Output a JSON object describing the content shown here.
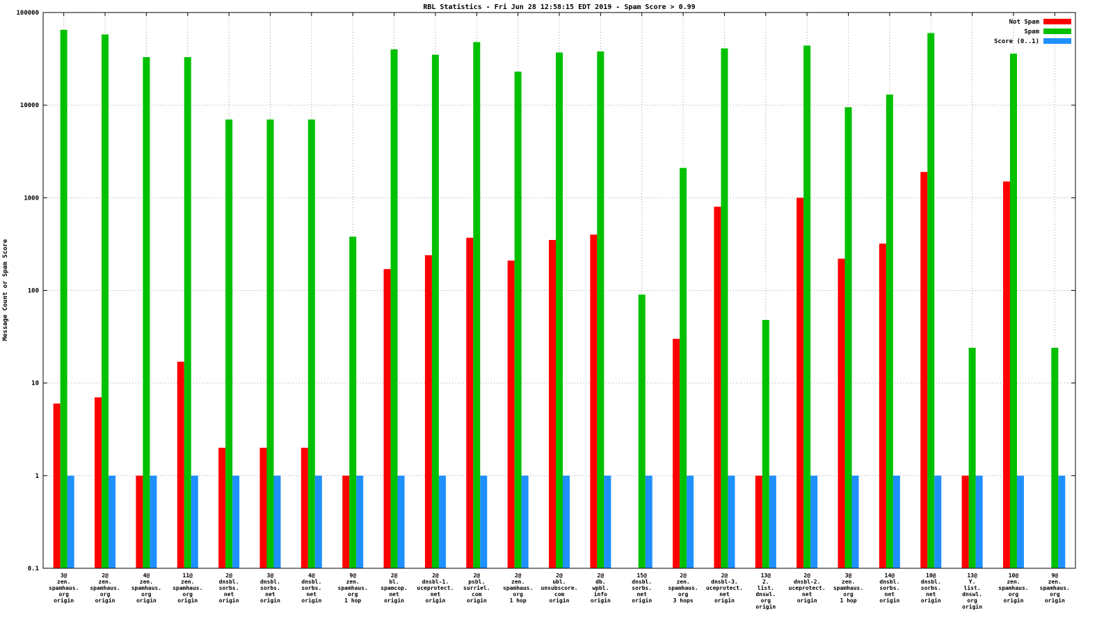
{
  "chart_data": {
    "type": "bar",
    "title": "RBL Statistics - Fri Jun 28 12:58:15 EDT 2019 - Spam Score > 0.99",
    "xlabel": "",
    "ylabel": "Message Count or Spam Score",
    "yscale": "log",
    "ylim": [
      0.1,
      100000
    ],
    "yticks": [
      100000,
      10000,
      1000,
      100,
      10,
      1,
      0.1
    ],
    "ytick_labels": [
      "100000",
      "10000",
      "1000",
      "100",
      "10",
      "1",
      "0.1"
    ],
    "grid": true,
    "legend_position": "top-right",
    "categories": [
      [
        "3@",
        "zen.",
        "spamhaus.",
        "org",
        "origin"
      ],
      [
        "2@",
        "zen.",
        "spamhaus.",
        "org",
        "origin"
      ],
      [
        "4@",
        "zen.",
        "spamhaus.",
        "org",
        "origin"
      ],
      [
        "11@",
        "zen.",
        "spamhaus.",
        "org",
        "origin"
      ],
      [
        "2@",
        "dnsbl.",
        "sorbs.",
        "net",
        "origin"
      ],
      [
        "3@",
        "dnsbl.",
        "sorbs.",
        "net",
        "origin"
      ],
      [
        "4@",
        "dnsbl.",
        "sorbs.",
        "net",
        "origin"
      ],
      [
        "9@",
        "zen.",
        "spamhaus.",
        "org",
        "1 hop"
      ],
      [
        "2@",
        "bl.",
        "spamcop.",
        "net",
        "origin"
      ],
      [
        "2@",
        "dnsbl-1.",
        "uceprotect.",
        "net",
        "origin"
      ],
      [
        "2@",
        "psbl.",
        "surriel.",
        "com",
        "origin"
      ],
      [
        "2@",
        "zen.",
        "spamhaus.",
        "org",
        "1 hop"
      ],
      [
        "2@",
        "ubl.",
        "unsubscore.",
        "com",
        "origin"
      ],
      [
        "2@",
        "db.",
        "wpbl.",
        "info",
        "origin"
      ],
      [
        "15@",
        "dnsbl.",
        "sorbs.",
        "net",
        "origin"
      ],
      [
        "2@",
        "zen.",
        "spamhaus.",
        "org",
        "3 hops"
      ],
      [
        "2@",
        "dnsbl-3.",
        "uceprotect.",
        "net",
        "origin"
      ],
      [
        "13@",
        "2.",
        "list.",
        "dnswl.",
        "org",
        "origin"
      ],
      [
        "2@",
        "dnsbl-2.",
        "uceprotect.",
        "net",
        "origin"
      ],
      [
        "3@",
        "zen.",
        "spamhaus.",
        "org",
        "1 hop"
      ],
      [
        "14@",
        "dnsbl.",
        "sorbs.",
        "net",
        "origin"
      ],
      [
        "10@",
        "dnsbl.",
        "sorbs.",
        "net",
        "origin"
      ],
      [
        "13@",
        "Y.",
        "list.",
        "dnswl.",
        "org",
        "origin"
      ],
      [
        "10@",
        "zen.",
        "spamhaus.",
        "org",
        "origin"
      ],
      [
        "9@",
        "zen.",
        "spamhaus.",
        "org",
        "origin"
      ]
    ],
    "series": [
      {
        "name": "Not Spam",
        "color": "#ff0000",
        "values": [
          6,
          7,
          1,
          17,
          2,
          2,
          2,
          1,
          170,
          240,
          370,
          210,
          350,
          400,
          null,
          30,
          800,
          1,
          1000,
          220,
          320,
          1900,
          1,
          1500,
          null
        ]
      },
      {
        "name": "Spam",
        "color": "#00c000",
        "values": [
          65000,
          58000,
          33000,
          33000,
          7000,
          7000,
          7000,
          380,
          40000,
          35000,
          48000,
          23000,
          37000,
          38000,
          90,
          2100,
          41000,
          48,
          44000,
          9500,
          13000,
          60000,
          24,
          36000,
          24
        ]
      },
      {
        "name": "Score (0..1)",
        "color": "#1e90ff",
        "values": [
          1,
          1,
          1,
          1,
          1,
          1,
          1,
          1,
          1,
          1,
          1,
          1,
          1,
          1,
          1,
          1,
          1,
          1,
          1,
          1,
          1,
          1,
          1,
          1,
          1
        ]
      }
    ]
  }
}
